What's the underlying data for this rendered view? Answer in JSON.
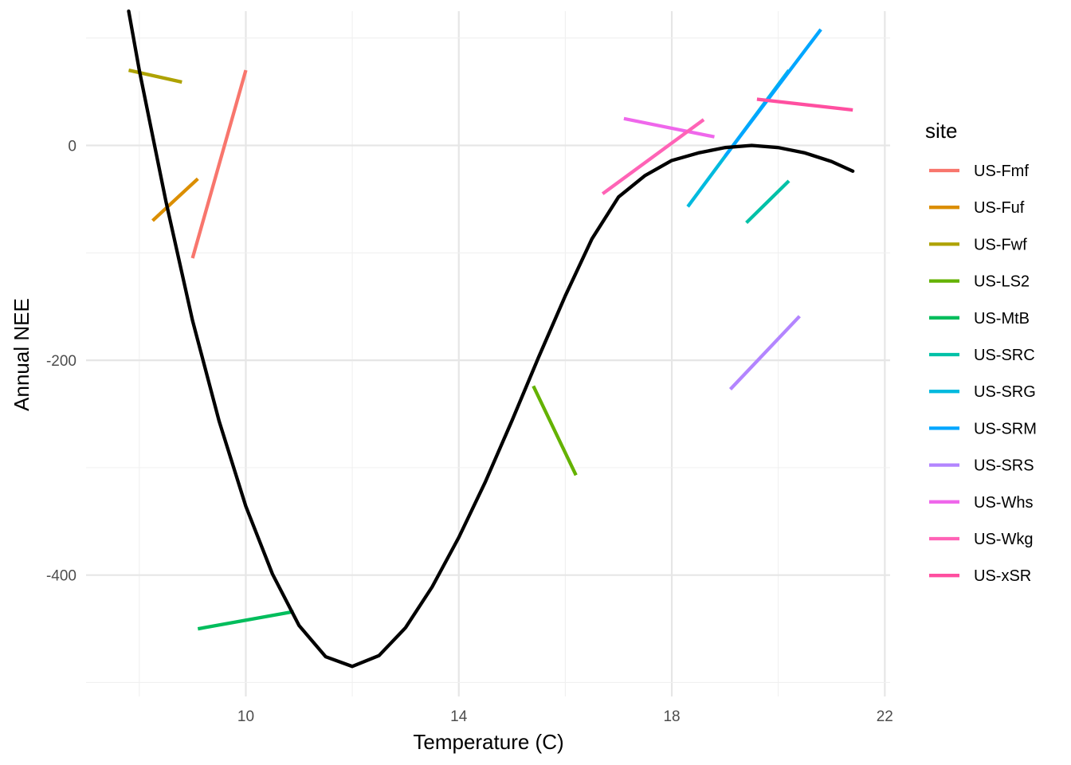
{
  "chart_data": {
    "type": "line",
    "xlabel": "Temperature (C)",
    "ylabel": "Annual NEE",
    "xlim": [
      7.0,
      22.1
    ],
    "ylim": [
      -513,
      125
    ],
    "x_ticks": [
      10,
      14,
      18,
      22
    ],
    "y_ticks": [
      0,
      -200,
      -400
    ],
    "grid": true,
    "legend": {
      "title": "site",
      "position": "right"
    },
    "series": [
      {
        "name": "US-Fmf",
        "color": "#F8766D",
        "x": [
          9.0,
          10.0
        ],
        "y": [
          -105,
          70
        ]
      },
      {
        "name": "US-Fuf",
        "color": "#DB8E00",
        "x": [
          8.25,
          9.1
        ],
        "y": [
          -70,
          -31
        ]
      },
      {
        "name": "US-Fwf",
        "color": "#AEA200",
        "x": [
          7.8,
          8.8
        ],
        "y": [
          70,
          59
        ]
      },
      {
        "name": "US-LS2",
        "color": "#64B200",
        "x": [
          15.4,
          16.2
        ],
        "y": [
          -224,
          -307
        ]
      },
      {
        "name": "US-MtB",
        "color": "#00BD5C",
        "x": [
          9.1,
          10.9
        ],
        "y": [
          -450,
          -434
        ]
      },
      {
        "name": "US-SRC",
        "color": "#00C1A7",
        "x": [
          19.4,
          20.2
        ],
        "y": [
          -72,
          -33
        ]
      },
      {
        "name": "US-SRG",
        "color": "#00BADE",
        "x": [
          18.3,
          20.2
        ],
        "y": [
          -57,
          70
        ]
      },
      {
        "name": "US-SRM",
        "color": "#00A6FF",
        "x": [
          19.0,
          20.8
        ],
        "y": [
          -10,
          108
        ]
      },
      {
        "name": "US-SRS",
        "color": "#B385FF",
        "x": [
          19.1,
          20.4
        ],
        "y": [
          -227,
          -159
        ]
      },
      {
        "name": "US-Whs",
        "color": "#EF67EB",
        "x": [
          17.1,
          18.8
        ],
        "y": [
          25,
          8
        ]
      },
      {
        "name": "US-Wkg",
        "color": "#FF63B6",
        "x": [
          16.7,
          18.6
        ],
        "y": [
          -45,
          24
        ]
      },
      {
        "name": "US-xSR",
        "color": "#FF4FA0",
        "x": [
          19.6,
          21.4
        ],
        "y": [
          43,
          33
        ]
      }
    ],
    "fit_line": {
      "color": "#000000",
      "x": [
        7.8,
        8.0,
        8.5,
        9.0,
        9.5,
        10.0,
        10.5,
        11.0,
        11.5,
        12.0,
        12.5,
        13.0,
        13.5,
        14.0,
        14.5,
        15.0,
        15.5,
        16.0,
        16.5,
        17.0,
        17.5,
        18.0,
        18.5,
        19.0,
        19.5,
        20.0,
        20.5,
        21.0,
        21.4
      ],
      "y": [
        125,
        70,
        -52,
        -163,
        -257,
        -336,
        -399,
        -447,
        -476,
        -485,
        -475,
        -449,
        -411,
        -365,
        -313,
        -256,
        -197,
        -140,
        -87,
        -48,
        -28,
        -14,
        -7,
        -2,
        0,
        -2,
        -7,
        -15,
        -24
      ]
    }
  }
}
